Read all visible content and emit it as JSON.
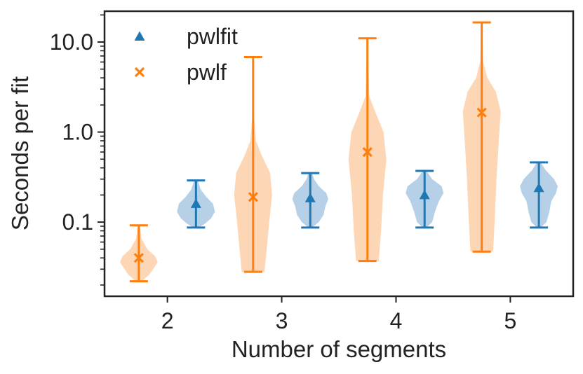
{
  "chart_data": {
    "type": "violin",
    "xlabel": "Number of segments",
    "ylabel": "Seconds per fit",
    "yscale": "log",
    "ylim": [
      0.015,
      22
    ],
    "xlim": [
      1.45,
      5.55
    ],
    "xticks": [
      2,
      3,
      4,
      5
    ],
    "xtick_labels": [
      "2",
      "3",
      "4",
      "5"
    ],
    "yticks": [
      0.1,
      1.0,
      10.0
    ],
    "ytick_labels": [
      "0.1",
      "1.0",
      "10.0"
    ],
    "legend_position": "top-left",
    "series": [
      {
        "name": "pwlfit",
        "color": "#1f77b4",
        "fill": "#a9c8e3",
        "marker": "triangle",
        "points": [
          {
            "segments": 2,
            "x": 2.25,
            "min": 0.087,
            "max": 0.29,
            "median": 0.16,
            "shape": [
              [
                0.087,
                0.1
              ],
              [
                0.095,
                0.45
              ],
              [
                0.11,
                0.8
              ],
              [
                0.13,
                1.0
              ],
              [
                0.16,
                0.9
              ],
              [
                0.19,
                0.55
              ],
              [
                0.23,
                0.25
              ],
              [
                0.29,
                0.1
              ]
            ]
          },
          {
            "segments": 3,
            "x": 3.25,
            "min": 0.087,
            "max": 0.35,
            "median": 0.185,
            "shape": [
              [
                0.087,
                0.1
              ],
              [
                0.1,
                0.45
              ],
              [
                0.12,
                0.7
              ],
              [
                0.15,
                0.8
              ],
              [
                0.18,
                0.95
              ],
              [
                0.21,
                0.85
              ],
              [
                0.25,
                0.45
              ],
              [
                0.3,
                0.2
              ],
              [
                0.35,
                0.1
              ]
            ]
          },
          {
            "segments": 4,
            "x": 4.25,
            "min": 0.087,
            "max": 0.37,
            "median": 0.2,
            "shape": [
              [
                0.087,
                0.1
              ],
              [
                0.1,
                0.4
              ],
              [
                0.13,
                0.55
              ],
              [
                0.17,
                0.75
              ],
              [
                0.21,
                1.0
              ],
              [
                0.25,
                0.9
              ],
              [
                0.3,
                0.4
              ],
              [
                0.37,
                0.1
              ]
            ]
          },
          {
            "segments": 5,
            "x": 5.25,
            "min": 0.087,
            "max": 0.46,
            "median": 0.24,
            "shape": [
              [
                0.087,
                0.1
              ],
              [
                0.1,
                0.4
              ],
              [
                0.13,
                0.55
              ],
              [
                0.17,
                0.65
              ],
              [
                0.21,
                0.9
              ],
              [
                0.25,
                1.0
              ],
              [
                0.3,
                0.8
              ],
              [
                0.38,
                0.35
              ],
              [
                0.46,
                0.1
              ]
            ]
          }
        ]
      },
      {
        "name": "pwlf",
        "color": "#ff7f0e",
        "fill": "#fdd0a8",
        "marker": "x",
        "points": [
          {
            "segments": 2,
            "x": 1.75,
            "min": 0.022,
            "max": 0.092,
            "median": 0.04,
            "shape": [
              [
                0.022,
                0.15
              ],
              [
                0.026,
                0.55
              ],
              [
                0.031,
                0.8
              ],
              [
                0.036,
                1.0
              ],
              [
                0.042,
                0.85
              ],
              [
                0.05,
                0.45
              ],
              [
                0.065,
                0.15
              ],
              [
                0.092,
                0.05
              ]
            ]
          },
          {
            "segments": 3,
            "x": 2.75,
            "min": 0.028,
            "max": 6.8,
            "median": 0.19,
            "shape": [
              [
                0.028,
                0.6
              ],
              [
                0.05,
                0.72
              ],
              [
                0.1,
                0.85
              ],
              [
                0.2,
                1.0
              ],
              [
                0.35,
                0.9
              ],
              [
                0.55,
                0.45
              ],
              [
                0.8,
                0.15
              ],
              [
                1.5,
                0.05
              ],
              [
                6.8,
                0.02
              ]
            ]
          },
          {
            "segments": 4,
            "x": 3.75,
            "min": 0.037,
            "max": 11.0,
            "median": 0.6,
            "shape": [
              [
                0.037,
                0.6
              ],
              [
                0.08,
                0.72
              ],
              [
                0.2,
                0.82
              ],
              [
                0.5,
                1.0
              ],
              [
                1.0,
                0.85
              ],
              [
                1.6,
                0.45
              ],
              [
                2.5,
                0.1
              ],
              [
                11.0,
                0.02
              ]
            ]
          },
          {
            "segments": 5,
            "x": 4.75,
            "min": 0.047,
            "max": 16.5,
            "median": 1.65,
            "shape": [
              [
                0.047,
                0.6
              ],
              [
                0.1,
                0.68
              ],
              [
                0.3,
                0.78
              ],
              [
                0.8,
                0.9
              ],
              [
                1.7,
                1.0
              ],
              [
                2.8,
                0.75
              ],
              [
                4.0,
                0.3
              ],
              [
                6.0,
                0.08
              ],
              [
                16.5,
                0.02
              ]
            ]
          }
        ]
      }
    ]
  }
}
